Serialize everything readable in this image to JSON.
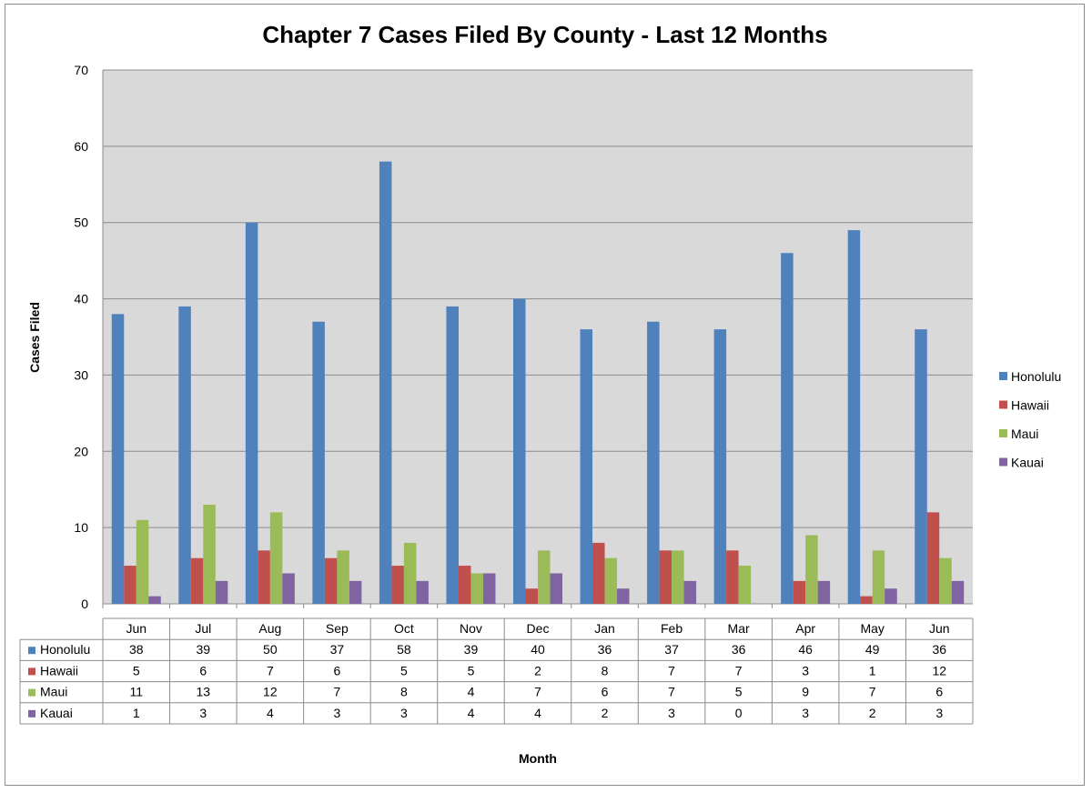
{
  "chart_data": {
    "type": "bar",
    "title": "Chapter 7 Cases Filed By County - Last 12 Months",
    "xlabel": "Month",
    "ylabel": "Cases Filed",
    "ylim": [
      0,
      70
    ],
    "yticks": [
      0,
      10,
      20,
      30,
      40,
      50,
      60,
      70
    ],
    "grid": true,
    "legend_position": "right",
    "data_table": true,
    "plot_background": "#d9d9d9",
    "categories": [
      "Jun",
      "Jul",
      "Aug",
      "Sep",
      "Oct",
      "Nov",
      "Dec",
      "Jan",
      "Feb",
      "Mar",
      "Apr",
      "May",
      "Jun"
    ],
    "series": [
      {
        "name": "Honolulu",
        "color": "#4f81bd",
        "values": [
          38,
          39,
          50,
          37,
          58,
          39,
          40,
          36,
          37,
          36,
          46,
          49,
          36
        ]
      },
      {
        "name": "Hawaii",
        "color": "#c0504d",
        "values": [
          5,
          6,
          7,
          6,
          5,
          5,
          2,
          8,
          7,
          7,
          3,
          1,
          12
        ]
      },
      {
        "name": "Maui",
        "color": "#9bbb59",
        "values": [
          11,
          13,
          12,
          7,
          8,
          4,
          7,
          6,
          7,
          5,
          9,
          7,
          6
        ]
      },
      {
        "name": "Kauai",
        "color": "#8064a2",
        "values": [
          1,
          3,
          4,
          3,
          3,
          4,
          4,
          2,
          3,
          0,
          3,
          2,
          3
        ]
      }
    ]
  }
}
